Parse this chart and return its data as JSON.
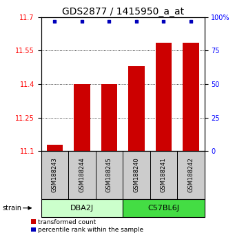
{
  "title": "GDS2877 / 1415950_a_at",
  "samples": [
    "GSM188243",
    "GSM188244",
    "GSM188245",
    "GSM188240",
    "GSM188241",
    "GSM188242"
  ],
  "bar_values": [
    11.13,
    11.4,
    11.4,
    11.48,
    11.585,
    11.585
  ],
  "percentile_values": [
    97,
    97,
    97,
    97,
    97,
    97
  ],
  "y_min": 11.1,
  "y_max": 11.7,
  "y_ticks": [
    11.1,
    11.25,
    11.4,
    11.55,
    11.7
  ],
  "y2_ticks": [
    0,
    25,
    50,
    75,
    100
  ],
  "bar_color": "#cc0000",
  "dot_color": "#0000bb",
  "group1_label": "DBA2J",
  "group2_label": "C57BL6J",
  "group1_color": "#ccffcc",
  "group2_color": "#44dd44",
  "sample_box_color": "#cccccc",
  "legend_red_label": "transformed count",
  "legend_blue_label": "percentile rank within the sample",
  "strain_label": "strain",
  "title_fontsize": 10,
  "tick_fontsize": 7,
  "label_fontsize": 7,
  "bar_width": 0.6
}
